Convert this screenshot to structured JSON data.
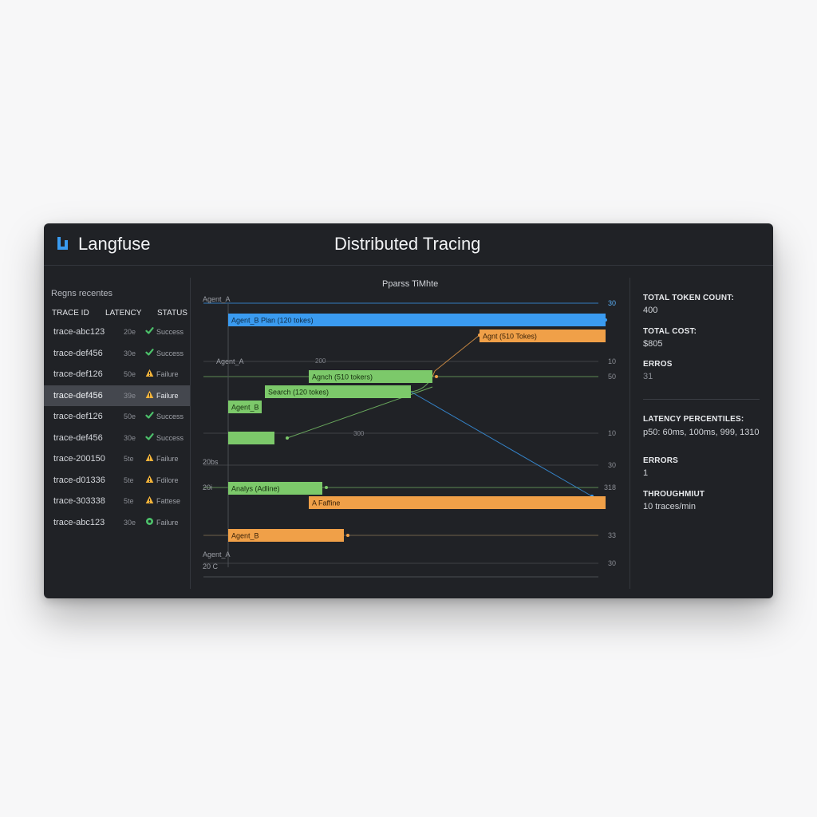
{
  "header": {
    "brand": "Langfuse",
    "title": "Distributed Tracing"
  },
  "traces_panel": {
    "title": "Regns recentes",
    "columns": {
      "trace_id": "TRACE ID",
      "latency": "LATENCY",
      "status": "STATUS"
    },
    "rows": [
      {
        "id": "trace-abc123",
        "latency": "20e",
        "status": "Success",
        "kind": "success"
      },
      {
        "id": "trace-def456",
        "latency": "30e",
        "status": "Success",
        "kind": "success"
      },
      {
        "id": "trace-def126",
        "latency": "50e",
        "status": "Failure",
        "kind": "warning"
      },
      {
        "id": "trace-def456",
        "latency": "39e",
        "status": "Failure",
        "kind": "warning",
        "selected": true
      },
      {
        "id": "trace-def126",
        "latency": "50e",
        "status": "Success",
        "kind": "success"
      },
      {
        "id": "trace-def456",
        "latency": "30e",
        "status": "Success",
        "kind": "success"
      },
      {
        "id": "trace-200150",
        "latency": "5te",
        "status": "Failure",
        "kind": "warning"
      },
      {
        "id": "trace-d01336",
        "latency": "5te",
        "status": "Fdilore",
        "kind": "warning"
      },
      {
        "id": "trace-303338",
        "latency": "5te",
        "status": "Fattese",
        "kind": "warning"
      },
      {
        "id": "trace-abc123",
        "latency": "30e",
        "status": "Failure",
        "kind": "circle"
      }
    ]
  },
  "timeline": {
    "title": "Pparss TiMhte",
    "labels": {
      "agent_a_top": "Agent_A",
      "agent_a_mid": "Agent_A",
      "n_200": "200",
      "n_300": "300",
      "n_20bs": "20bs",
      "n_20": "20i",
      "agent_a_bottom": "Agent_A",
      "c_20": "20 C"
    },
    "right_values": [
      "30",
      "10",
      "50",
      "10",
      "30",
      "318",
      "33",
      "30"
    ],
    "spans": [
      {
        "label": "Agent_B Plan (120 tokes)",
        "kind": "llm"
      },
      {
        "label": "Agnt (510 Tokes)",
        "kind": "warn"
      },
      {
        "label": "Agnch (510 tokers)",
        "kind": "tool"
      },
      {
        "label": "Search (120 tokes)",
        "kind": "tool"
      },
      {
        "label": "Agent_B",
        "kind": "tool"
      },
      {
        "label": "",
        "kind": "tool"
      },
      {
        "label": "Analys (Adline)",
        "kind": "tool"
      },
      {
        "label": "A Faffine",
        "kind": "warn"
      },
      {
        "label": "Agent_B",
        "kind": "warn"
      }
    ]
  },
  "metrics": {
    "total_tokens_label": "TOTAL TOKEN COUNT:",
    "total_tokens_value": "400",
    "total_cost_label": "TOTAL COST:",
    "total_cost_value": "$805",
    "erros_label": "ERROS",
    "erros_value": "31",
    "latency_label": "LATENCY PERCENTILES:",
    "latency_value": "p50: 60ms, 100ms, 999, 1310",
    "errors_label": "ERRORS",
    "errors_value": "1",
    "throughput_label": "THROUGHMIUT",
    "throughput_value": "10 traces/min"
  },
  "colors": {
    "blue": "#3a9bf0",
    "green": "#7cc96a",
    "orange": "#f0a048",
    "success": "#4cc06a",
    "warning": "#f2b33a"
  }
}
